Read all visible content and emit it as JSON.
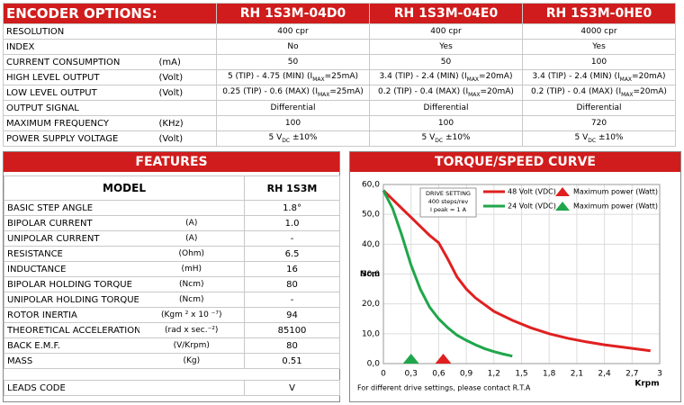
{
  "encoder": {
    "title": "ENCODER OPTIONS:",
    "columns": [
      "RH 1S3M-04D0",
      "RH 1S3M-04E0",
      "RH 1S3M-0HE0"
    ],
    "rows": [
      {
        "label": "RESOLUTION",
        "cells": [
          "400 cpr",
          "400 cpr",
          "4000 cpr"
        ]
      },
      {
        "label": "INDEX",
        "cells": [
          "No",
          "Yes",
          "Yes"
        ]
      },
      {
        "label": "CURRENT CONSUMPTION",
        "unit": "(mA)",
        "cells": [
          "50",
          "50",
          "100"
        ]
      },
      {
        "label": "HIGH LEVEL OUTPUT",
        "unit": "(Volt)",
        "cells": [
          [
            "5 (TIP) - 4.75 (MIN) (I",
            "MAX",
            "=25mA)"
          ],
          [
            "3.4 (TIP) - 2.4 (MIN) (I",
            "MAX",
            "=20mA)"
          ],
          [
            "3.4 (TIP) - 2.4 (MIN) (I",
            "MAX",
            "=20mA)"
          ]
        ]
      },
      {
        "label": "LOW LEVEL OUTPUT",
        "unit": "(Volt)",
        "cells": [
          [
            "0.25 (TIP) - 0.6 (MAX) (I",
            "MAX",
            "=25mA)"
          ],
          [
            "0.2 (TIP) - 0.4 (MAX) (I",
            "MAX",
            "=20mA)"
          ],
          [
            "0.2 (TIP) - 0.4 (MAX) (I",
            "MAX",
            "=20mA)"
          ]
        ]
      },
      {
        "label": "OUTPUT SIGNAL",
        "cells": [
          "Differential",
          "Differential",
          "Differential"
        ]
      },
      {
        "label": "MAXIMUM FREQUENCY",
        "unit": "(KHz)",
        "cells": [
          "100",
          "100",
          "720"
        ]
      },
      {
        "label": "POWER SUPPLY VOLTAGE",
        "unit": "(Volt)",
        "cells": [
          [
            "5 V",
            "DC",
            " ±10%"
          ],
          [
            "5 V",
            "DC",
            " ±10%"
          ],
          [
            "5 V",
            "DC",
            " ±10%"
          ]
        ]
      }
    ]
  },
  "features": {
    "title": "FEATURES",
    "header": [
      "MODEL",
      "RH 1S3M"
    ],
    "rows": [
      {
        "label": "BASIC STEP ANGLE",
        "value": "1.8°"
      },
      {
        "label": "BIPOLAR CURRENT",
        "unit": "(A)",
        "value": "1.0"
      },
      {
        "label": "UNIPOLAR CURRENT",
        "unit": "(A)",
        "value": "-"
      },
      {
        "label": "RESISTANCE",
        "unit": "(Ohm)",
        "value": "6.5"
      },
      {
        "label": "INDUCTANCE",
        "unit": "(mH)",
        "value": "16"
      },
      {
        "label": "BIPOLAR HOLDING TORQUE",
        "unit": "(Ncm)",
        "value": "80"
      },
      {
        "label": "UNIPOLAR HOLDING TORQUE",
        "unit": "(Ncm)",
        "value": "-"
      },
      {
        "label": "ROTOR INERTIA",
        "unit": "(Kgm ² x 10 ⁻⁷)",
        "value": "94"
      },
      {
        "label": "THEORETICAL ACCELERATION",
        "unit": "(rad x sec.⁻²)",
        "value": "85100"
      },
      {
        "label": "BACK E.M.F.",
        "unit": "(V/Krpm)",
        "value": "80"
      },
      {
        "label": "MASS",
        "unit": "(Kg)",
        "value": "0.51"
      },
      {
        "label": "LEADS CODE",
        "value": "V"
      }
    ]
  },
  "chart_data": {
    "type": "line",
    "title": "TORQUE/SPEED CURVE",
    "ylabel": "Ncm",
    "xlabel": "Krpm",
    "annotation": [
      "DRIVE SETTING",
      "400 steps/rev",
      "I peak = 1 A"
    ],
    "footnote": "For different drive settings, please contact R.T.A",
    "xlim": [
      0,
      3
    ],
    "xticks": [
      0,
      {
        "value": 0.3,
        "label": "0,3"
      },
      {
        "value": 0.6,
        "label": "0,6"
      },
      {
        "value": 0.9,
        "label": "0,9"
      },
      {
        "value": 1.2,
        "label": "1,2"
      },
      {
        "value": 1.5,
        "label": "1,5"
      },
      {
        "value": 1.8,
        "label": "1,8"
      },
      {
        "value": 2.1,
        "label": "2,1"
      },
      {
        "value": 2.4,
        "label": "2,4"
      },
      {
        "value": 2.7,
        "label": "2,7"
      },
      3
    ],
    "ylim": [
      0,
      60
    ],
    "yticks": [
      {
        "value": 0,
        "label": "0,0"
      },
      {
        "value": 10,
        "label": "10,0"
      },
      {
        "value": 20,
        "label": "20,0"
      },
      {
        "value": 30,
        "label": "30,0"
      },
      {
        "value": 40,
        "label": "40,0"
      },
      {
        "value": 50,
        "label": "50,0"
      },
      {
        "value": 60,
        "label": "60,0"
      }
    ],
    "series": [
      {
        "name": "48 Volt (VDC)",
        "color": "#e02020",
        "x": [
          0,
          0.1,
          0.2,
          0.3,
          0.4,
          0.5,
          0.6,
          0.7,
          0.8,
          0.9,
          1.0,
          1.2,
          1.4,
          1.6,
          1.8,
          2.0,
          2.2,
          2.4,
          2.6,
          2.9
        ],
        "values": [
          58,
          55,
          52,
          49,
          46,
          43,
          40.5,
          35,
          29,
          25,
          22,
          17.5,
          14.5,
          12,
          10,
          8.5,
          7.3,
          6.3,
          5.5,
          4.3
        ]
      },
      {
        "name": "24 Volt (VDC)",
        "color": "#1fa64a",
        "x": [
          0,
          0.1,
          0.2,
          0.3,
          0.4,
          0.5,
          0.6,
          0.7,
          0.8,
          0.9,
          1.0,
          1.1,
          1.2,
          1.3,
          1.4
        ],
        "values": [
          58,
          52,
          43,
          33,
          25,
          19,
          15,
          12,
          9.5,
          7.8,
          6.3,
          5,
          4,
          3.2,
          2.5
        ]
      }
    ],
    "markers": [
      {
        "name": "Maximum power (Watt)",
        "color": "#e02020",
        "x": 0.65,
        "y": 0
      },
      {
        "name": "Maximum power (Watt)",
        "color": "#1fa64a",
        "x": 0.3,
        "y": 0
      }
    ]
  }
}
